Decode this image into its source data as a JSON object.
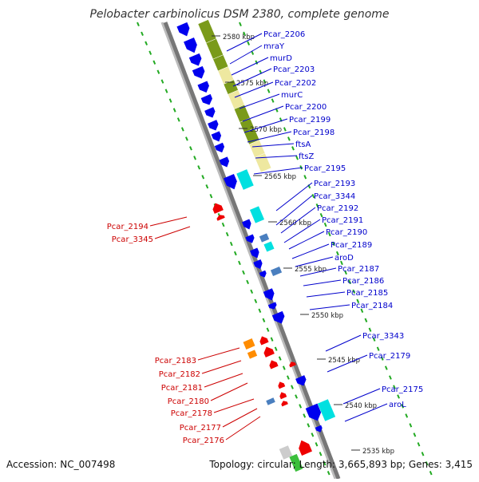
{
  "title": "Pelobacter carbinolicus DSM 2380, complete genome",
  "footer": {
    "accession": "Accession: NC_007498",
    "summary": "Topology: circular; Length: 3,665,893 bp; Genes: 3,415"
  },
  "colors": {
    "forward_cds": "#0000ee",
    "reverse_cds": "#ee0000",
    "rna": "#00e0e0",
    "misc_feature": "#4a7fbf",
    "orange_feature": "#ff8c00",
    "gc_skew": "#7a9a1a",
    "gc_pale": "#eee8a0",
    "dotted_track": "#22aa22",
    "backbone": "#777777",
    "forward_label": "#0000cc",
    "reverse_label": "#cc0000"
  },
  "kbp_ticks": [
    "2580 kbp",
    "2575 kbp",
    "2570 kbp",
    "2565 kbp",
    "2560 kbp",
    "2555 kbp",
    "2550 kbp",
    "2545 kbp",
    "2540 kbp",
    "2535 kbp"
  ],
  "forward_labels": [
    "Pcar_2206",
    "mraY",
    "murD",
    "Pcar_2203",
    "Pcar_2202",
    "murC",
    "Pcar_2200",
    "Pcar_2199",
    "Pcar_2198",
    "ftsA",
    "ftsZ",
    "Pcar_2195",
    "Pcar_2193",
    "Pcar_3344",
    "Pcar_2192",
    "Pcar_2191",
    "Pcar_2190",
    "Pcar_2189",
    "aroD",
    "Pcar_2187",
    "Pcar_2186",
    "Pcar_2185",
    "Pcar_2184",
    "Pcar_3343",
    "Pcar_2179",
    "Pcar_2175",
    "aroL"
  ],
  "reverse_labels": [
    "Pcar_2194",
    "Pcar_3345",
    "Pcar_2183",
    "Pcar_2182",
    "Pcar_2181",
    "Pcar_2180",
    "Pcar_2178",
    "Pcar_2177",
    "Pcar_2176"
  ]
}
